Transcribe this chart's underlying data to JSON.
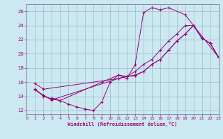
{
  "bg_color": "#cce8f0",
  "line_color": "#990077",
  "grid_color": "#99bbc8",
  "xlim": [
    0,
    23
  ],
  "ylim": [
    11.5,
    27.0
  ],
  "yticks": [
    12,
    14,
    16,
    18,
    20,
    22,
    24,
    26
  ],
  "xticks": [
    0,
    1,
    2,
    3,
    4,
    5,
    6,
    7,
    8,
    9,
    10,
    11,
    12,
    13,
    14,
    15,
    16,
    17,
    18,
    19,
    20,
    21,
    22,
    23
  ],
  "xlabel": "Windchill (Refroidissement éolien,°C)",
  "lines": [
    {
      "x": [
        1,
        2,
        3,
        3,
        4,
        9,
        11,
        12,
        13,
        14,
        15,
        16,
        17,
        19,
        20,
        23
      ],
      "y": [
        15,
        14,
        13.6,
        13.8,
        13.4,
        16.0,
        17.0,
        16.5,
        18.5,
        25.8,
        26.5,
        26.2,
        26.5,
        25.5,
        24.0,
        19.5
      ]
    },
    {
      "x": [
        1,
        2,
        3,
        11,
        12,
        13,
        14,
        15,
        16,
        17,
        18,
        19,
        20,
        21,
        22,
        23
      ],
      "y": [
        15.0,
        14.1,
        13.5,
        16.5,
        16.8,
        16.9,
        17.5,
        18.5,
        19.2,
        20.5,
        21.8,
        22.8,
        24.0,
        22.2,
        21.5,
        19.5
      ]
    },
    {
      "x": [
        1,
        2,
        3,
        4,
        5,
        6,
        7,
        8,
        9,
        10,
        11,
        12,
        13,
        14,
        15,
        16,
        17,
        18,
        19,
        20,
        21,
        22,
        23
      ],
      "y": [
        14.9,
        14.1,
        13.6,
        13.4,
        12.9,
        12.5,
        12.2,
        12.0,
        13.2,
        16.0,
        17.0,
        16.8,
        17.5,
        18.5,
        19.2,
        20.5,
        21.8,
        22.8,
        24.0,
        24.0,
        22.2,
        21.5,
        19.5
      ]
    },
    {
      "x": [
        1,
        2,
        11,
        12,
        13,
        14,
        15,
        16,
        17,
        18,
        19,
        20,
        21,
        22,
        23
      ],
      "y": [
        15.8,
        15.0,
        16.5,
        16.8,
        17.0,
        17.5,
        18.5,
        19.2,
        20.5,
        21.8,
        22.8,
        24.0,
        22.2,
        21.5,
        19.5
      ]
    }
  ]
}
